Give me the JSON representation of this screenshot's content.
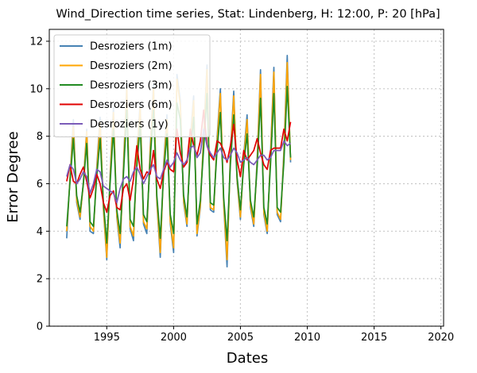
{
  "chart_data": {
    "type": "line",
    "title": "Wind_Direction time series, Stat: Lindenberg, H: 12:00, P: 20 [hPa]",
    "xlabel": "Dates",
    "ylabel": "Error Degree",
    "xlim": [
      1990.7,
      2020.2
    ],
    "ylim": [
      0,
      12.5
    ],
    "xticks": [
      1995,
      2000,
      2005,
      2010,
      2015,
      2020
    ],
    "yticks": [
      0,
      2,
      4,
      6,
      8,
      10,
      12
    ],
    "grid": true,
    "legend_position": "upper-left",
    "start_date": 1992.0,
    "step_years": 0.25,
    "series": [
      {
        "name": "Desroziers (1m)",
        "color": "#4682b4",
        "values": [
          3.7,
          6.3,
          8.7,
          5.2,
          4.5,
          6.1,
          8.3,
          4.0,
          3.9,
          6.7,
          8.8,
          4.9,
          2.8,
          6.4,
          9.2,
          4.6,
          3.3,
          6.8,
          10.2,
          4.1,
          3.6,
          7.2,
          9.4,
          4.3,
          3.9,
          7.5,
          10.2,
          5.2,
          2.9,
          6.8,
          8.9,
          4.3,
          3.1,
          10.6,
          9.5,
          5.2,
          4.2,
          7.9,
          9.7,
          3.8,
          5.0,
          8.1,
          11.0,
          4.9,
          4.8,
          7.9,
          10.0,
          5.1,
          2.5,
          7.3,
          9.9,
          6.1,
          4.5,
          7.2,
          8.9,
          5.0,
          4.2,
          7.1,
          10.8,
          4.7,
          3.9,
          7.3,
          10.9,
          4.7,
          4.4,
          7.4,
          11.4,
          6.9
        ]
      },
      {
        "name": "Desroziers (2m)",
        "color": "#ffa500",
        "values": [
          4.0,
          6.2,
          8.4,
          5.3,
          4.6,
          6.0,
          8.2,
          4.2,
          4.0,
          6.5,
          8.6,
          5.0,
          2.9,
          6.2,
          9.0,
          4.7,
          3.5,
          6.6,
          10.0,
          4.2,
          3.8,
          7.0,
          9.2,
          4.4,
          4.1,
          7.3,
          10.0,
          5.3,
          3.1,
          6.6,
          8.7,
          4.4,
          3.3,
          10.4,
          9.3,
          5.3,
          4.3,
          7.7,
          9.5,
          3.9,
          5.1,
          7.9,
          10.8,
          5.0,
          4.9,
          7.7,
          9.8,
          5.2,
          2.8,
          7.1,
          9.7,
          6.2,
          4.6,
          7.0,
          8.7,
          5.1,
          4.3,
          6.9,
          10.6,
          4.8,
          4.0,
          7.1,
          10.7,
          4.8,
          4.5,
          7.2,
          11.1,
          7.0
        ]
      },
      {
        "name": "Desroziers (3m)",
        "color": "#228b22",
        "values": [
          4.2,
          6.1,
          7.9,
          5.5,
          4.8,
          6.0,
          7.7,
          4.4,
          4.2,
          6.3,
          7.9,
          5.2,
          3.5,
          6.0,
          8.3,
          4.9,
          3.9,
          6.4,
          9.1,
          4.5,
          4.2,
          6.7,
          8.5,
          4.7,
          4.4,
          7.0,
          9.1,
          5.5,
          3.7,
          6.4,
          8.1,
          4.7,
          3.9,
          9.4,
          8.7,
          5.5,
          4.6,
          7.3,
          8.8,
          4.3,
          5.3,
          7.5,
          9.8,
          5.2,
          5.1,
          7.4,
          9.0,
          5.4,
          3.6,
          6.8,
          8.9,
          6.3,
          4.9,
          6.8,
          8.1,
          5.3,
          4.6,
          6.7,
          9.6,
          5.0,
          4.3,
          6.8,
          9.8,
          5.0,
          4.8,
          6.9,
          10.1,
          7.1
        ]
      },
      {
        "name": "Desroziers (6m)",
        "color": "#e00000",
        "values": [
          6.1,
          6.8,
          6.1,
          6.0,
          6.4,
          6.7,
          6.1,
          5.4,
          5.8,
          6.4,
          6.0,
          5.2,
          4.8,
          5.5,
          5.7,
          5.0,
          4.9,
          5.8,
          6.0,
          5.3,
          6.2,
          7.6,
          6.6,
          6.2,
          6.5,
          6.4,
          7.4,
          6.2,
          5.8,
          6.5,
          6.9,
          6.6,
          6.5,
          8.3,
          7.3,
          6.7,
          6.9,
          8.3,
          7.6,
          7.2,
          7.8,
          9.1,
          7.6,
          7.2,
          7.0,
          7.8,
          7.7,
          7.4,
          6.9,
          7.6,
          8.5,
          7.0,
          6.3,
          7.4,
          7.0,
          7.2,
          7.4,
          7.9,
          7.3,
          6.8,
          6.6,
          7.4,
          7.5,
          7.5,
          7.5,
          8.3,
          7.8,
          8.6
        ]
      },
      {
        "name": "Desroziers (1y)",
        "color": "#7b5cb8",
        "values": [
          6.3,
          6.8,
          6.6,
          6.0,
          6.2,
          6.5,
          6.3,
          5.6,
          6.0,
          6.6,
          6.5,
          5.9,
          5.8,
          5.7,
          5.6,
          5.2,
          5.8,
          6.2,
          6.3,
          6.1,
          6.5,
          6.7,
          6.4,
          6.0,
          6.3,
          6.6,
          6.8,
          6.3,
          6.2,
          6.6,
          7.0,
          6.7,
          6.9,
          7.3,
          7.0,
          6.8,
          7.0,
          7.5,
          7.6,
          7.1,
          7.3,
          8.3,
          7.6,
          7.3,
          7.1,
          7.3,
          7.5,
          7.1,
          7.0,
          7.2,
          7.5,
          7.3,
          6.9,
          7.0,
          7.1,
          6.9,
          6.8,
          7.0,
          7.2,
          7.2,
          7.0,
          7.1,
          7.4,
          7.4,
          7.4,
          7.8,
          7.6,
          7.7
        ]
      }
    ]
  }
}
